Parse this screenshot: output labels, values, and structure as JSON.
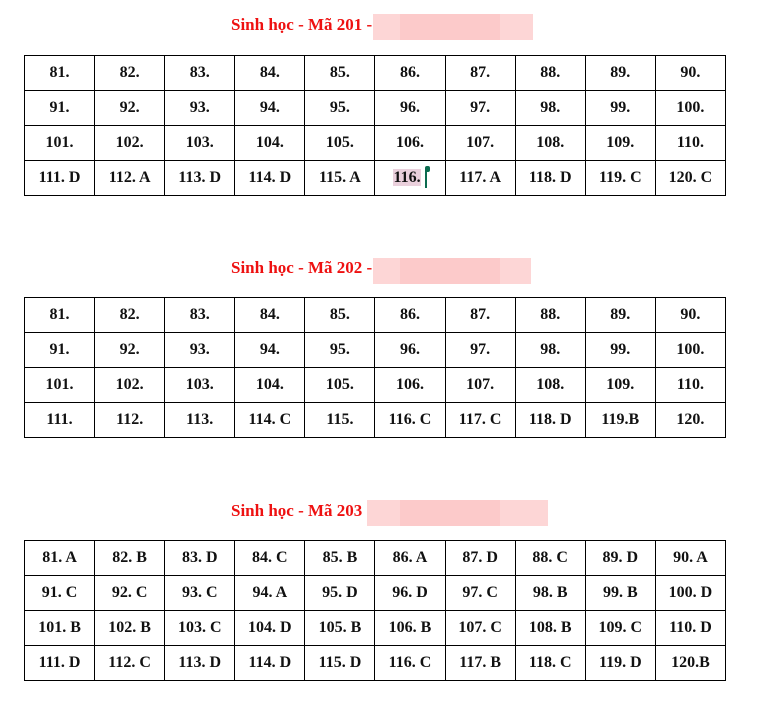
{
  "sections": [
    {
      "title": "Sinh học - Mã 201 -",
      "rows": [
        [
          "81.",
          "82.",
          "83.",
          "84.",
          "85.",
          "86.",
          "87.",
          "88.",
          "89.",
          "90."
        ],
        [
          "91.",
          "92.",
          "93.",
          "94.",
          "95.",
          "96.",
          "97.",
          "98.",
          "99.",
          "100."
        ],
        [
          "101.",
          "102.",
          "103.",
          "104.",
          "105.",
          "106.",
          "107.",
          "108.",
          "109.",
          "110."
        ],
        [
          "111. D",
          "112. A",
          "113. D",
          "114. D",
          "115. A",
          "116.",
          "117. A",
          "118. D",
          "119. C",
          "120. C"
        ]
      ]
    },
    {
      "title": "Sinh học - Mã 202 -",
      "rows": [
        [
          "81.",
          "82.",
          "83.",
          "84.",
          "85.",
          "86.",
          "87.",
          "88.",
          "89.",
          "90."
        ],
        [
          "91.",
          "92.",
          "93.",
          "94.",
          "95.",
          "96.",
          "97.",
          "98.",
          "99.",
          "100."
        ],
        [
          "101.",
          "102.",
          "103.",
          "104.",
          "105.",
          "106.",
          "107.",
          "108.",
          "109.",
          "110."
        ],
        [
          "111.",
          "112.",
          "113.",
          "114. C",
          "115.",
          "116. C",
          "117. C",
          "118. D",
          "119.B",
          "120."
        ]
      ]
    },
    {
      "title": "Sinh học - Mã 203",
      "rows": [
        [
          "81. A",
          "82. B",
          "83. D",
          "84. C",
          "85. B",
          "86. A",
          "87. D",
          "88. C",
          "89. D",
          "90. A"
        ],
        [
          "91. C",
          "92. C",
          "93. C",
          "94. A",
          "95. D",
          "96. D",
          "97. C",
          "98. B",
          "99. B",
          "100. D"
        ],
        [
          "101. B",
          "102. B",
          "103. C",
          "104. D",
          "105. B",
          "106. B",
          "107. C",
          "108. B",
          "109. C",
          "110. D"
        ],
        [
          "111. D",
          "112. C",
          "113. D",
          "114. D",
          "115. D",
          "116. C",
          "117. B",
          "118. C",
          "119. D",
          "120.B"
        ]
      ]
    }
  ]
}
